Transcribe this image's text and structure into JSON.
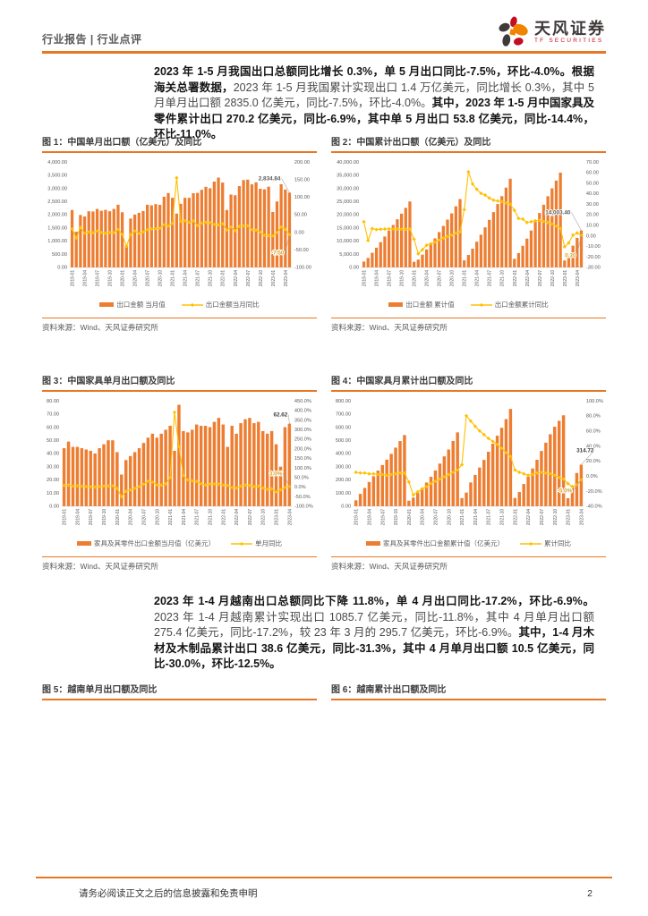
{
  "header": {
    "breadcrumb": "行业报告 | 行业点评",
    "brand": "天风证券",
    "brand_sub": "TF SECURITIES"
  },
  "colors": {
    "accent": "#E87722",
    "bar": "#ED7D31",
    "line": "#FFC000",
    "logo_gray": "#3E3A39",
    "logo_orange": "#F08300",
    "logo_red": "#C30D23"
  },
  "paragraphs": [
    {
      "segments": [
        {
          "b": 1,
          "t": "2023 年 1-5 月我国出口总额同比增长 0.3%，单 5 月出口同比-7.5%，环比-4.0%。根据海关总署数据，"
        },
        {
          "b": 0,
          "t": "2023 年 1-5 月我国累计实现出口 1.4 万亿美元，同比增长 0.3%，其中 5 月单月出口额 2835.0 亿美元，同比-7.5%，环比-4.0%。"
        },
        {
          "b": 1,
          "t": "其中，2023 年 1-5 月中国家具及零件累计出口 270.2 亿美元，同比-6.9%，其中单 5 月出口 53.8 亿美元，同比-14.4%，环比-11.0%。"
        }
      ]
    },
    {
      "segments": [
        {
          "b": 1,
          "t": "2023 年 1-4 月越南出口总额同比下降 11.8%，单 4 月出口同比-17.2%，环比-6.9%。"
        },
        {
          "b": 0,
          "t": "2023 年 1-4 月越南累计实现出口 1085.7 亿美元，同比-11.8%，其中 4 月单月出口额 275.4 亿美元，同比-17.2%，较 23 年 3 月的 295.7 亿美元，环比-6.9%。"
        },
        {
          "b": 1,
          "t": "其中，1-4 月木材及木制品累计出口 38.6 亿美元，同比-31.3%，其中 4 月单月出口额 10.5 亿美元，同比-30.0%，环比-12.5%。"
        }
      ]
    }
  ],
  "footer": {
    "disclaimer": "请务必阅读正文之后的信息披露和免责申明",
    "page_number": "2"
  },
  "chart_data": [
    {
      "type": "bar+line",
      "title": "图 1：中国单月出口额（亿美元）及同比",
      "source": "资料来源：Wind、天风证券研究所",
      "x_label_every": 3,
      "categories": [
        "2019-01",
        "2019-02",
        "2019-03",
        "2019-04",
        "2019-05",
        "2019-06",
        "2019-07",
        "2019-08",
        "2019-09",
        "2019-10",
        "2019-11",
        "2019-12",
        "2020-01",
        "2020-02",
        "2020-03",
        "2020-04",
        "2020-05",
        "2020-06",
        "2020-07",
        "2020-08",
        "2020-09",
        "2020-10",
        "2020-11",
        "2020-12",
        "2021-01",
        "2021-02",
        "2021-03",
        "2021-04",
        "2021-05",
        "2021-06",
        "2021-07",
        "2021-08",
        "2021-09",
        "2021-10",
        "2021-11",
        "2021-12",
        "2022-01",
        "2022-02",
        "2022-03",
        "2022-04",
        "2022-05",
        "2022-06",
        "2022-07",
        "2022-08",
        "2022-09",
        "2022-10",
        "2022-11",
        "2022-12",
        "2023-01",
        "2023-02",
        "2023-03",
        "2023-04",
        "2023-05"
      ],
      "series": [
        {
          "name": "出口金额 当月值",
          "type": "bar",
          "axis": "left",
          "values": [
            2175,
            1352,
            1987,
            1930,
            2128,
            2119,
            2215,
            2148,
            2181,
            2129,
            2217,
            2376,
            2090,
            835,
            1851,
            2002,
            2068,
            2135,
            2376,
            2353,
            2398,
            2371,
            2680,
            2819,
            2639,
            2039,
            2411,
            2639,
            2639,
            2814,
            2826,
            2943,
            3057,
            3002,
            3254,
            3405,
            3217,
            2175,
            2763,
            2736,
            3082,
            3312,
            3329,
            3149,
            3227,
            2983,
            2960,
            3061,
            2100,
            2500,
            3155,
            2954,
            2834.84
          ]
        },
        {
          "name": "出口金额当月同比",
          "type": "line",
          "axis": "right",
          "values": [
            9.3,
            -16.6,
            13.8,
            -2.7,
            0.5,
            -1.3,
            3.3,
            -1,
            -3.2,
            -0.9,
            -1.3,
            7.9,
            -6.7,
            -40.6,
            -6.6,
            3.4,
            -3.3,
            0.5,
            7.2,
            9.5,
            9.9,
            11.4,
            21.1,
            18.1,
            24.8,
            154.9,
            30.6,
            32.2,
            27.8,
            32.2,
            19.3,
            25.6,
            28.1,
            27.1,
            22,
            20.9,
            24.1,
            6.2,
            14.7,
            3.9,
            16.9,
            17.9,
            18,
            7.1,
            5.7,
            -0.3,
            -8.9,
            -9.9,
            -10.5,
            -1.3,
            14.8,
            8.5,
            -7.5
          ]
        }
      ],
      "left_axis": {
        "min": 0,
        "max": 4000,
        "step": 500,
        "decimals": 2,
        "thousands": true,
        "percent": false
      },
      "right_axis": {
        "min": -100,
        "max": 200,
        "step": 50,
        "decimals": 2,
        "thousands": false,
        "percent": false
      },
      "annotations": [
        {
          "series": 0,
          "label": "2,834.84"
        },
        {
          "series": 1,
          "label": "-7.50"
        }
      ]
    },
    {
      "type": "bar+line",
      "title": "图 2：中国累计出口额（亿美元）及同比",
      "source": "资料来源：Wind、天风证券研究所",
      "x_label_every": 3,
      "categories": [
        "2019-01",
        "2019-02",
        "2019-03",
        "2019-04",
        "2019-05",
        "2019-06",
        "2019-07",
        "2019-08",
        "2019-09",
        "2019-10",
        "2019-11",
        "2019-12",
        "2020-01",
        "2020-02",
        "2020-03",
        "2020-04",
        "2020-05",
        "2020-06",
        "2020-07",
        "2020-08",
        "2020-09",
        "2020-10",
        "2020-11",
        "2020-12",
        "2021-01",
        "2021-02",
        "2021-03",
        "2021-04",
        "2021-05",
        "2021-06",
        "2021-07",
        "2021-08",
        "2021-09",
        "2021-10",
        "2021-11",
        "2021-12",
        "2022-01",
        "2022-02",
        "2022-03",
        "2022-04",
        "2022-05",
        "2022-06",
        "2022-07",
        "2022-08",
        "2022-09",
        "2022-10",
        "2022-11",
        "2022-12",
        "2023-01",
        "2023-02",
        "2023-03",
        "2023-04",
        "2023-05"
      ],
      "series": [
        {
          "name": "出口金额 累计值",
          "type": "bar",
          "axis": "left",
          "values": [
            2175,
            3527,
            5514,
            7444,
            9572,
            11691,
            13906,
            16054,
            18235,
            20364,
            22581,
            24990,
            2090,
            2925,
            4776,
            6778,
            8846,
            10981,
            13357,
            15710,
            18108,
            20479,
            23159,
            25906,
            2639,
            4678,
            7089,
            9728,
            12367,
            15181,
            18007,
            20950,
            24007,
            27009,
            30263,
            33640,
            3217,
            5392,
            8155,
            10891,
            13973,
            17285,
            20614,
            23763,
            26990,
            29973,
            32933,
            35936,
            2577,
            5063,
            8218,
            11172,
            14003.4
          ]
        },
        {
          "name": "出口金额累计同比",
          "type": "line",
          "axis": "right",
          "values": [
            13.2,
            -4.6,
            6.8,
            5.8,
            6.1,
            6.3,
            6.5,
            6.4,
            6.2,
            6.1,
            6,
            6.3,
            -3.3,
            -17.2,
            -13.3,
            -9,
            -7.7,
            -6.2,
            -4.1,
            -2.3,
            -0.8,
            0.5,
            2.5,
            3.6,
            24.8,
            60.6,
            49,
            44,
            40.2,
            38.6,
            35.7,
            33.7,
            33,
            32.3,
            31.1,
            29.9,
            24.1,
            16.3,
            15.8,
            12.5,
            13.3,
            14.2,
            14.6,
            13.5,
            12.5,
            11.1,
            9.1,
            7,
            -10.5,
            -6.8,
            0.5,
            2.5,
            0.3
          ]
        }
      ],
      "left_axis": {
        "min": 0,
        "max": 40000,
        "step": 5000,
        "decimals": 2,
        "thousands": true,
        "percent": false
      },
      "right_axis": {
        "min": -30,
        "max": 70,
        "step": 10,
        "decimals": 2,
        "thousands": false,
        "percent": false
      },
      "annotations": [
        {
          "series": 0,
          "label": "14,003.40"
        },
        {
          "series": 1,
          "label": "0.30"
        }
      ]
    },
    {
      "type": "bar+line",
      "title": "图 3：中国家具单月出口额及同比",
      "source": "资料来源：Wind、天风证券研究所",
      "x_label_every": 3,
      "categories": [
        "2019-01",
        "2019-02",
        "2019-03",
        "2019-04",
        "2019-05",
        "2019-06",
        "2019-07",
        "2019-08",
        "2019-09",
        "2019-10",
        "2019-11",
        "2019-12",
        "2020-01",
        "2020-02",
        "2020-03",
        "2020-04",
        "2020-05",
        "2020-06",
        "2020-07",
        "2020-08",
        "2020-09",
        "2020-10",
        "2020-11",
        "2020-12",
        "2021-01",
        "2021-02",
        "2021-03",
        "2021-04",
        "2021-05",
        "2021-06",
        "2021-07",
        "2021-08",
        "2021-09",
        "2021-10",
        "2021-11",
        "2021-12",
        "2022-01",
        "2022-02",
        "2022-03",
        "2022-04",
        "2022-05",
        "2022-06",
        "2022-07",
        "2022-08",
        "2022-09",
        "2022-10",
        "2022-11",
        "2022-12",
        "2023-01",
        "2023-02",
        "2023-03",
        "2023-04"
      ],
      "series": [
        {
          "name": "家具及其零件出口金额当月值（亿美元）",
          "type": "bar",
          "axis": "left",
          "values": [
            44,
            49,
            45,
            45,
            44,
            43,
            42,
            40,
            44,
            47,
            50,
            50,
            41,
            24,
            35,
            38,
            41,
            44,
            48,
            52,
            55,
            52,
            55,
            58,
            61,
            42,
            77,
            57,
            56,
            58,
            62,
            61,
            61,
            60,
            64,
            67,
            62,
            45,
            61,
            55,
            63,
            66,
            67,
            63,
            64,
            57,
            55,
            57,
            47,
            30,
            60,
            62.62
          ]
        },
        {
          "name": "单月同比",
          "type": "line",
          "axis": "right",
          "values": [
            8,
            10,
            5,
            6,
            4,
            2,
            1,
            0,
            2,
            4,
            5,
            6,
            -7,
            -51,
            -22,
            -15,
            -7,
            2,
            14,
            30,
            25,
            11,
            10,
            16,
            49,
            390,
            210,
            60,
            37,
            32,
            29,
            17,
            11,
            15,
            16,
            15,
            10,
            8,
            -2,
            -5,
            5,
            10,
            8,
            2,
            5,
            -5,
            -12,
            -10,
            -25,
            -15,
            -2,
            3
          ]
        }
      ],
      "left_axis": {
        "min": 0,
        "max": 80,
        "step": 10,
        "decimals": 2,
        "thousands": false,
        "percent": false
      },
      "right_axis": {
        "min": -100,
        "max": 450,
        "step": 50,
        "decimals": 1,
        "thousands": false,
        "percent": true
      },
      "annotations": [
        {
          "series": 0,
          "label": "62.62"
        },
        {
          "series": 1,
          "label": "3.0%"
        }
      ]
    },
    {
      "type": "bar+line",
      "title": "图 4：中国家具月累计出口额及同比",
      "source": "资料来源：Wind、天风证券研究所",
      "x_label_every": 3,
      "categories": [
        "2019-01",
        "2019-02",
        "2019-03",
        "2019-04",
        "2019-05",
        "2019-06",
        "2019-07",
        "2019-08",
        "2019-09",
        "2019-10",
        "2019-11",
        "2019-12",
        "2020-01",
        "2020-02",
        "2020-03",
        "2020-04",
        "2020-05",
        "2020-06",
        "2020-07",
        "2020-08",
        "2020-09",
        "2020-10",
        "2020-11",
        "2020-12",
        "2021-01",
        "2021-02",
        "2021-03",
        "2021-04",
        "2021-05",
        "2021-06",
        "2021-07",
        "2021-08",
        "2021-09",
        "2021-10",
        "2021-11",
        "2021-12",
        "2022-01",
        "2022-02",
        "2022-03",
        "2022-04",
        "2022-05",
        "2022-06",
        "2022-07",
        "2022-08",
        "2022-09",
        "2022-10",
        "2022-11",
        "2022-12",
        "2023-01",
        "2023-02",
        "2023-03",
        "2023-04"
      ],
      "series": [
        {
          "name": "家具及其零件出口金额累计值（亿美元）",
          "type": "bar",
          "axis": "left",
          "values": [
            44,
            93,
            138,
            183,
            227,
            270,
            312,
            353,
            397,
            444,
            494,
            540,
            41,
            65,
            100,
            138,
            179,
            223,
            271,
            323,
            378,
            430,
            495,
            560,
            61,
            103,
            180,
            237,
            293,
            351,
            413,
            474,
            535,
            595,
            661,
            738,
            62,
            107,
            168,
            223,
            286,
            352,
            419,
            482,
            546,
            603,
            648,
            690,
            60,
            150,
            252,
            314.72
          ]
        },
        {
          "name": "累计同比",
          "type": "line",
          "axis": "right",
          "values": [
            5,
            4,
            4,
            3,
            3,
            2,
            2,
            1,
            2,
            3,
            4,
            4,
            -8,
            -25,
            -21,
            -17,
            -14,
            -10,
            -7,
            -4,
            -1,
            2,
            5,
            8,
            15,
            80,
            73,
            66,
            60,
            55,
            50,
            46,
            42,
            37,
            31,
            26,
            8,
            5,
            3,
            1,
            2,
            4,
            5,
            4,
            3,
            1,
            -2,
            -4,
            -10,
            -14,
            -12,
            -5
          ]
        }
      ],
      "left_axis": {
        "min": 0,
        "max": 800,
        "step": 100,
        "decimals": 2,
        "thousands": false,
        "percent": false
      },
      "right_axis": {
        "min": -40,
        "max": 100,
        "step": 20,
        "decimals": 1,
        "thousands": false,
        "percent": true
      },
      "annotations": [
        {
          "series": 0,
          "label": "314.72"
        },
        {
          "series": 1,
          "label": "-5.0%"
        }
      ]
    },
    {
      "title": "图 5：越南单月出口额及同比"
    },
    {
      "title": "图 6：越南累计出口额及同比"
    }
  ]
}
